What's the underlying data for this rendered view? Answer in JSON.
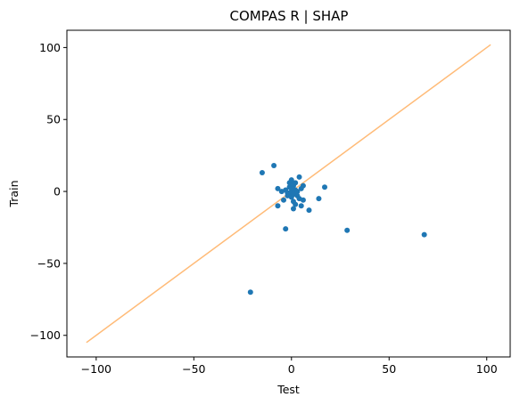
{
  "chart_data": {
    "type": "scatter",
    "title": "COMPAS R | SHAP",
    "xlabel": "Test",
    "ylabel": "Train",
    "xlim": [
      -115,
      112
    ],
    "ylim": [
      -115,
      112
    ],
    "xticks": [
      -100,
      -50,
      0,
      50,
      100
    ],
    "yticks": [
      -100,
      -50,
      0,
      50,
      100
    ],
    "xtick_labels": [
      "−100",
      "−50",
      "0",
      "50",
      "100"
    ],
    "ytick_labels": [
      "−100",
      "−50",
      "0",
      "50",
      "100"
    ],
    "grid": false,
    "reference_line": {
      "x": [
        -105,
        102
      ],
      "y": [
        -105,
        102
      ],
      "color": "#ffbb78"
    },
    "series": [
      {
        "color": "#1f77b4",
        "points": [
          [
            68,
            -30
          ],
          [
            28.5,
            -27
          ],
          [
            -21,
            -70
          ],
          [
            -3,
            -26
          ],
          [
            -9,
            18
          ],
          [
            -15,
            13
          ],
          [
            17,
            3
          ],
          [
            14,
            -5
          ],
          [
            9,
            -13
          ],
          [
            -7,
            -10
          ],
          [
            -7,
            2
          ],
          [
            -5,
            0
          ],
          [
            -4,
            -6
          ],
          [
            -3,
            1
          ],
          [
            -2,
            -3
          ],
          [
            -1,
            3
          ],
          [
            -1,
            -1
          ],
          [
            0,
            0
          ],
          [
            0,
            2
          ],
          [
            0,
            -4
          ],
          [
            0,
            8
          ],
          [
            1,
            -7
          ],
          [
            1,
            -12
          ],
          [
            1,
            -2
          ],
          [
            1,
            4
          ],
          [
            2,
            1
          ],
          [
            2,
            -9
          ],
          [
            2,
            6
          ],
          [
            3,
            0
          ],
          [
            3,
            -3
          ],
          [
            4,
            10
          ],
          [
            4,
            -5
          ],
          [
            5,
            2
          ],
          [
            5,
            -10
          ],
          [
            6,
            4
          ],
          [
            6,
            -6
          ],
          [
            -1,
            6
          ],
          [
            1,
            5
          ],
          [
            -2,
            -1
          ]
        ]
      }
    ]
  }
}
